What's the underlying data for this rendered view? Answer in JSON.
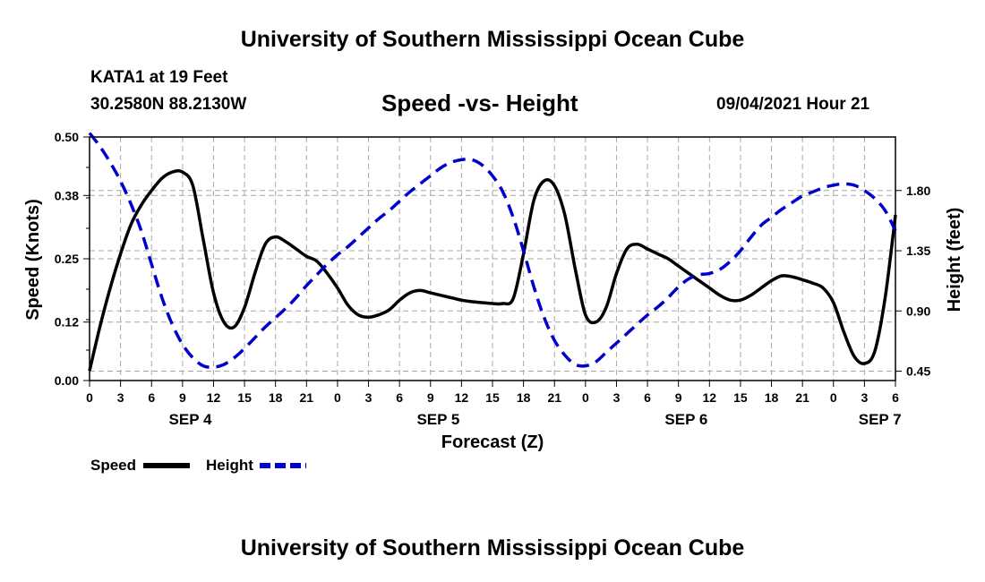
{
  "header": {
    "title": "University of Southern Mississippi Ocean Cube",
    "station": "KATA1 at 19 Feet",
    "coordinates": "30.2580N  88.2130W",
    "chart_title": "Speed -vs- Height",
    "datetime": "09/04/2021 Hour 21"
  },
  "footer": {
    "title": "University of Southern Mississippi Ocean Cube"
  },
  "chart_data": {
    "type": "line",
    "title": "Speed -vs- Height",
    "xlabel": "Forecast (Z)",
    "ylabel": "Speed (Knots)",
    "y2label": "Height (feet)",
    "ylim": [
      0,
      0.5
    ],
    "y2lim": [
      0.38,
      2.2
    ],
    "xlim": [
      0,
      78
    ],
    "yticks": [
      "0.00",
      "0.12",
      "0.25",
      "0.38",
      "0.50"
    ],
    "y2ticks": [
      "0.45",
      "0.90",
      "1.35",
      "1.80"
    ],
    "xticks": [
      "0",
      "3",
      "6",
      "9",
      "12",
      "15",
      "18",
      "21",
      "0",
      "3",
      "6",
      "9",
      "12",
      "15",
      "18",
      "21",
      "0",
      "3",
      "6",
      "9",
      "12",
      "15",
      "18",
      "21",
      "0",
      "3",
      "6"
    ],
    "day_labels": [
      {
        "label": "SEP 4",
        "hour": 9.75
      },
      {
        "label": "SEP 5",
        "hour": 33.75
      },
      {
        "label": "SEP 6",
        "hour": 57.75
      },
      {
        "label": "SEP 7",
        "hour": 76.5
      }
    ],
    "grid": true,
    "series": [
      {
        "name": "Speed",
        "axis": "left",
        "color": "#000000",
        "dash": "solid",
        "x": [
          0,
          1,
          2,
          3,
          4,
          5,
          6,
          7,
          8,
          9,
          10,
          11,
          12,
          13,
          14,
          15,
          16,
          17,
          18,
          19,
          20,
          21,
          22,
          23,
          24,
          25,
          26,
          27,
          28,
          29,
          30,
          31,
          32,
          33,
          34,
          35,
          36,
          37,
          38,
          39,
          40,
          41,
          42,
          43,
          44,
          45,
          46,
          47,
          48,
          49,
          50,
          51,
          52,
          53,
          54,
          55,
          56,
          57,
          58,
          59,
          60,
          61,
          62,
          63,
          64,
          65,
          66,
          67,
          68,
          69,
          70,
          71,
          72,
          73,
          74,
          75,
          76,
          77,
          78
        ],
        "values": [
          0.02,
          0.11,
          0.19,
          0.26,
          0.32,
          0.36,
          0.39,
          0.415,
          0.428,
          0.428,
          0.4,
          0.29,
          0.18,
          0.12,
          0.11,
          0.15,
          0.22,
          0.28,
          0.295,
          0.285,
          0.27,
          0.255,
          0.245,
          0.22,
          0.19,
          0.155,
          0.135,
          0.13,
          0.135,
          0.145,
          0.165,
          0.18,
          0.185,
          0.18,
          0.175,
          0.17,
          0.165,
          0.162,
          0.16,
          0.158,
          0.158,
          0.168,
          0.26,
          0.37,
          0.41,
          0.4,
          0.34,
          0.23,
          0.135,
          0.12,
          0.15,
          0.22,
          0.27,
          0.28,
          0.27,
          0.26,
          0.25,
          0.235,
          0.22,
          0.205,
          0.19,
          0.175,
          0.165,
          0.165,
          0.175,
          0.19,
          0.205,
          0.215,
          0.213,
          0.207,
          0.2,
          0.19,
          0.16,
          0.1,
          0.05,
          0.035,
          0.06,
          0.17,
          0.34
        ]
      },
      {
        "name": "Height",
        "axis": "right",
        "color": "#0000cc",
        "dash": "dashed",
        "x": [
          0,
          1,
          2,
          3,
          4,
          5,
          6,
          7,
          8,
          9,
          10,
          11,
          12,
          13,
          14,
          15,
          16,
          17,
          18,
          19,
          20,
          21,
          22,
          23,
          24,
          25,
          26,
          27,
          28,
          29,
          30,
          31,
          32,
          33,
          34,
          35,
          36,
          37,
          38,
          39,
          40,
          41,
          42,
          43,
          44,
          45,
          46,
          47,
          48,
          49,
          50,
          51,
          52,
          53,
          54,
          55,
          56,
          57,
          58,
          59,
          60,
          61,
          62,
          63,
          64,
          65,
          66,
          67,
          68,
          69,
          70,
          71,
          72,
          73,
          74,
          75,
          76,
          77,
          78
        ],
        "values": [
          2.23,
          2.13,
          2.01,
          1.87,
          1.7,
          1.5,
          1.25,
          1.0,
          0.8,
          0.65,
          0.55,
          0.49,
          0.48,
          0.5,
          0.55,
          0.62,
          0.7,
          0.78,
          0.85,
          0.92,
          1.0,
          1.09,
          1.17,
          1.25,
          1.32,
          1.38,
          1.45,
          1.52,
          1.59,
          1.65,
          1.72,
          1.79,
          1.85,
          1.91,
          1.97,
          2.01,
          2.03,
          2.03,
          1.99,
          1.91,
          1.79,
          1.6,
          1.35,
          1.08,
          0.85,
          0.68,
          0.57,
          0.5,
          0.49,
          0.52,
          0.59,
          0.66,
          0.73,
          0.8,
          0.87,
          0.93,
          1.0,
          1.08,
          1.14,
          1.17,
          1.18,
          1.21,
          1.27,
          1.35,
          1.45,
          1.54,
          1.6,
          1.66,
          1.71,
          1.76,
          1.79,
          1.82,
          1.84,
          1.85,
          1.84,
          1.8,
          1.74,
          1.65,
          1.5
        ]
      }
    ],
    "legend": [
      {
        "label": "Speed",
        "color": "#000000",
        "dash": "solid"
      },
      {
        "label": "Height",
        "color": "#0000cc",
        "dash": "dashed"
      }
    ],
    "legend_position": "bottom-left"
  }
}
